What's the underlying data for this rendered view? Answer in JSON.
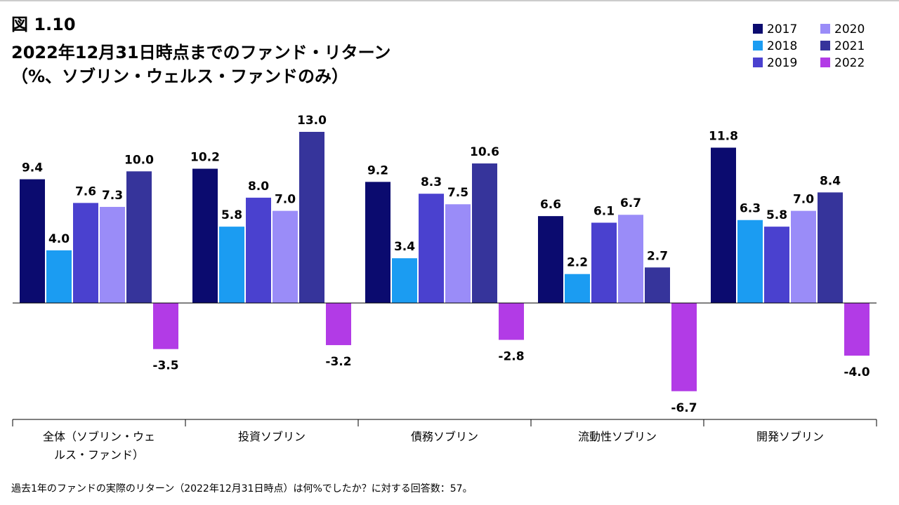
{
  "chart_data": {
    "type": "bar",
    "figure_label": "図 1.10",
    "title": "2022年12月31日時点までのファンド・リターン",
    "subtitle": "（%、ソブリン・ウェルス・ファンドのみ）",
    "note": "過去1年のファンドの実際のリターン（2022年12月31日時点）は何%でしたか？に対する回答数：57。",
    "categories": [
      "全体（ソブリン・ウェルス・ファンド）",
      "投資ソブリン",
      "債務ソブリン",
      "流動性ソブリン",
      "開発ソブリン"
    ],
    "series": [
      {
        "name": "2017",
        "color": "#0b0b6f",
        "values": [
          9.4,
          10.2,
          9.2,
          6.6,
          11.8
        ],
        "value_labels": [
          "9.4",
          "10.2",
          "9.2",
          "6.6",
          "11.8"
        ]
      },
      {
        "name": "2018",
        "color": "#1b9cf2",
        "values": [
          4.0,
          5.8,
          3.4,
          2.2,
          6.3
        ],
        "value_labels": [
          "4.0",
          "5.8",
          "3.4",
          "2.2",
          "6.3"
        ]
      },
      {
        "name": "2019",
        "color": "#4a41cf",
        "values": [
          7.6,
          8.0,
          8.3,
          6.1,
          5.8
        ],
        "value_labels": [
          "7.6",
          "8.0",
          "8.3",
          "6.1",
          "5.8"
        ]
      },
      {
        "name": "2020",
        "color": "#9a8cf8",
        "values": [
          7.3,
          7.0,
          7.5,
          6.7,
          7.0
        ],
        "value_labels": [
          "7.3",
          "7.0",
          "7.5",
          "6.7",
          "7.0"
        ]
      },
      {
        "name": "2021",
        "color": "#36349b",
        "values": [
          10.0,
          13.0,
          10.6,
          2.7,
          8.4
        ],
        "value_labels": [
          "10.0",
          "13.0",
          "10.6",
          "2.7",
          "8.4"
        ]
      },
      {
        "name": "2022",
        "color": "#b23be6",
        "values": [
          -3.5,
          -3.2,
          -2.8,
          -6.7,
          -4.0
        ],
        "value_labels": [
          "-3.5",
          "-3.2",
          "-2.8",
          "-6.7",
          "-4.0"
        ]
      }
    ]
  }
}
